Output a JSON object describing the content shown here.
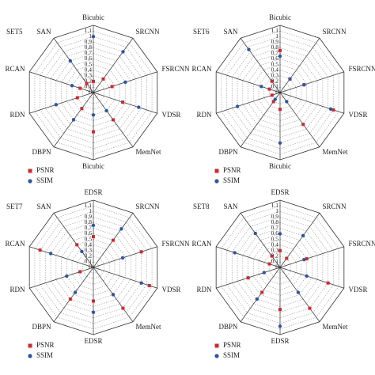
{
  "chart_data": [
    {
      "type": "radar",
      "title": "SET5",
      "categories": [
        "Bicubic",
        "SRCNN",
        "FSRCNN",
        "VDSR",
        "MemNet",
        "Bicubic",
        "DBPN",
        "RDN",
        "RCAN",
        "SAN"
      ],
      "series": [
        {
          "name": "PSNR",
          "color": "#d6262b",
          "values": [
            0.2,
            0.3,
            0.35,
            0.55,
            0.6,
            0.7,
            0.35,
            0.3,
            0.25,
            0.2
          ]
        },
        {
          "name": "SSIM",
          "color": "#2b55a6",
          "values": [
            1.0,
            0.9,
            0.6,
            0.85,
            0.4,
            0.4,
            0.6,
            0.7,
            0.4,
            0.7
          ]
        }
      ],
      "ylim": [
        0,
        1.2
      ],
      "yticks": [
        0,
        0.1,
        0.2,
        0.3,
        0.4,
        0.5,
        0.6,
        0.7,
        0.8,
        0.9,
        1,
        1.1
      ],
      "grid": true
    },
    {
      "type": "radar",
      "title": "SET6",
      "categories": [
        "Bicubic",
        "SRCNN",
        "FSRCNN",
        "VDSR",
        "MemNet",
        "Bicubic",
        "DBPN",
        "RDN",
        "RCAN",
        "SAN"
      ],
      "series": [
        {
          "name": "PSNR",
          "color": "#d6262b",
          "values": [
            0.75,
            0.3,
            0.45,
            1.0,
            0.7,
            0.3,
            0.2,
            0.15,
            0.2,
            0.25
          ]
        },
        {
          "name": "SSIM",
          "color": "#2b55a6",
          "values": [
            0.65,
            0.3,
            0.45,
            0.95,
            0.2,
            0.9,
            0.15,
            0.8,
            0.35,
            0.95
          ]
        }
      ],
      "ylim": [
        0,
        1.2
      ],
      "yticks": [
        0,
        0.1,
        0.2,
        0.3,
        0.4,
        0.5,
        0.6,
        0.7,
        0.8,
        0.9,
        1,
        1.1
      ],
      "grid": true
    },
    {
      "type": "radar",
      "title": "SET7",
      "categories": [
        "EDSR",
        "SRCNN",
        "FSRCNN",
        "VDSR",
        "MemNet",
        "EDSR",
        "DBPN",
        "RDN",
        "RCAN",
        "SAN"
      ],
      "series": [
        {
          "name": "PSNR",
          "color": "#d6262b",
          "values": [
            0.55,
            0.6,
            0.9,
            1.05,
            0.9,
            0.6,
            0.7,
            0.25,
            1.0,
            0.5
          ]
        },
        {
          "name": "SSIM",
          "color": "#2b55a6",
          "values": [
            0.75,
            0.85,
            0.55,
            0.9,
            0.6,
            0.8,
            0.55,
            0.5,
            0.8,
            0.35
          ]
        }
      ],
      "ylim": [
        0,
        1.2
      ],
      "yticks": [
        0,
        0.1,
        0.2,
        0.3,
        0.4,
        0.5,
        0.6,
        0.7,
        0.8,
        0.9,
        1,
        1.1
      ],
      "grid": true
    },
    {
      "type": "radar",
      "title": "SET8",
      "categories": [
        "EDSR",
        "SRCNN",
        "FSRCNN",
        "VDSR",
        "MemNet",
        "EDSR",
        "DBPN",
        "RDN",
        "RCAN",
        "SAN"
      ],
      "series": [
        {
          "name": "PSNR",
          "color": "#d6262b",
          "values": [
            0.3,
            0.2,
            0.5,
            0.9,
            0.9,
            0.75,
            0.55,
            0.6,
            0.2,
            0.25
          ]
        },
        {
          "name": "SSIM",
          "color": "#2b55a6",
          "values": [
            0.6,
            0.7,
            0.45,
            0.5,
            0.55,
            1.05,
            0.7,
            0.3,
            0.85,
            0.75
          ]
        }
      ],
      "ylim": [
        0,
        1.2
      ],
      "yticks": [
        0,
        0.1,
        0.2,
        0.3,
        0.4,
        0.5,
        0.6,
        0.7,
        0.8,
        0.9,
        1,
        1.1
      ],
      "grid": true
    }
  ]
}
